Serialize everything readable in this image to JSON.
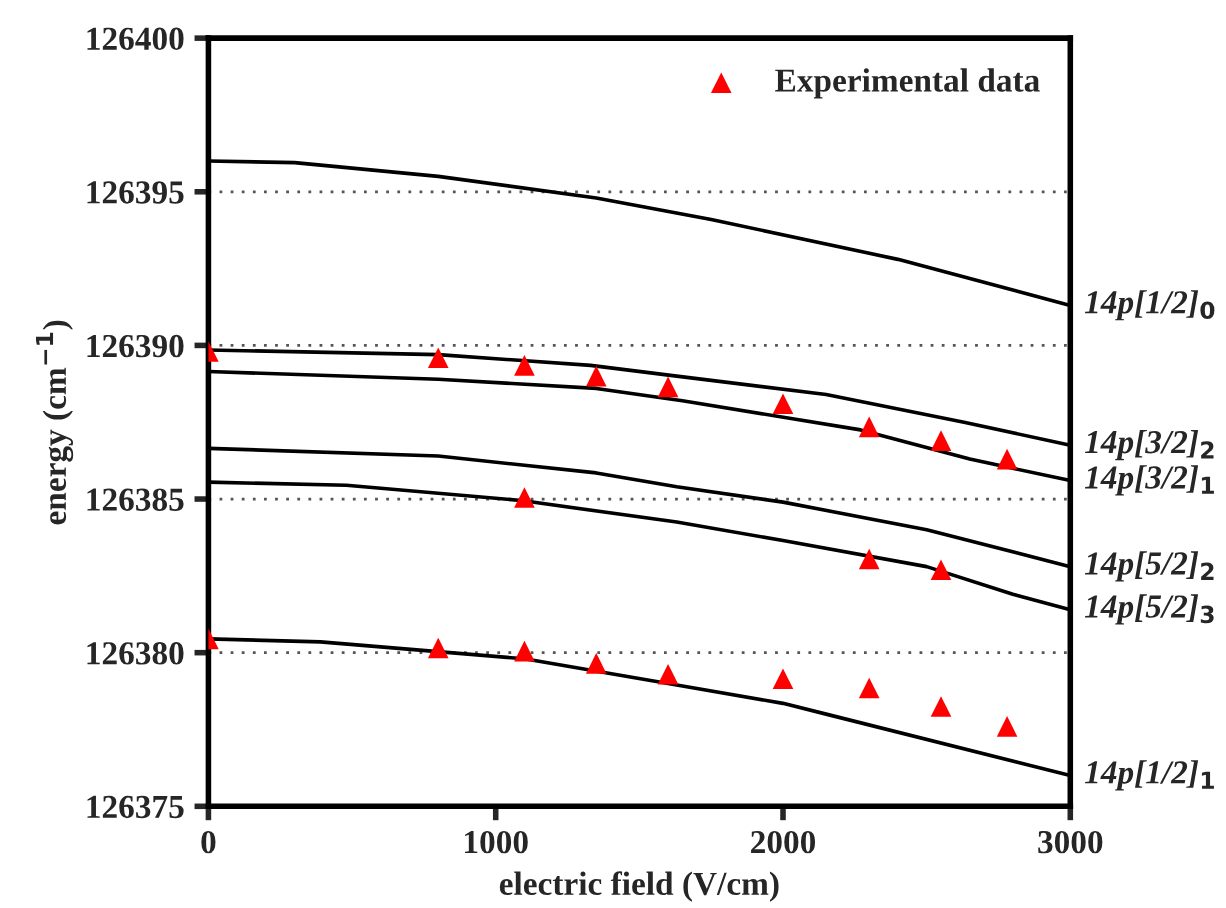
{
  "chart_data": {
    "type": "line",
    "xlabel": "electric field (V/cm)",
    "ylabel": "energy (cm$^{−1}$)",
    "xlim": [
      0,
      3000
    ],
    "xticks": [
      0,
      1000,
      2000,
      3000
    ],
    "ylim": [
      126375,
      126400
    ],
    "yticks": [
      126375,
      126380,
      126385,
      126390,
      126395,
      126400
    ],
    "grid": "y",
    "legend": "top right",
    "marker": "none",
    "line_style": "solid",
    "series": [
      {
        "name": "14p[1/2]$_{0}$",
        "color": "#000000",
        "x": [
          0,
          300,
          800,
          1350,
          1750,
          2400,
          3000
        ],
        "values": [
          126396.0,
          126395.95,
          126395.5,
          126394.8,
          126394.1,
          126392.8,
          126391.3
        ]
      },
      {
        "name": "14p[3/2]$_{2}$",
        "color": "#000000",
        "x": [
          0,
          800,
          1330,
          1630,
          2150,
          2630,
          3000
        ],
        "values": [
          126389.85,
          126389.7,
          126389.35,
          126389.0,
          126388.4,
          126387.5,
          126386.75
        ]
      },
      {
        "name": "14p[3/2]$_{1}$",
        "color": "#000000",
        "x": [
          0,
          800,
          1350,
          1650,
          2270,
          2650,
          3000
        ],
        "values": [
          126389.15,
          126388.9,
          126388.6,
          126388.2,
          126387.25,
          126386.3,
          126385.6
        ]
      },
      {
        "name": "14p[5/2]$_{2}$",
        "color": "#000000",
        "x": [
          0,
          800,
          1350,
          1630,
          2000,
          2500,
          3000
        ],
        "values": [
          126386.65,
          126386.4,
          126385.85,
          126385.4,
          126384.9,
          126384.0,
          126382.8
        ]
      },
      {
        "name": "14p[5/2]$_{3}$",
        "color": "#000000",
        "x": [
          0,
          480,
          1090,
          1630,
          2000,
          2500,
          2800,
          3000
        ],
        "values": [
          126385.55,
          126385.45,
          126384.95,
          126384.25,
          126383.65,
          126382.8,
          126381.9,
          126381.4
        ]
      },
      {
        "name": "14p[1/2]$_{1}$",
        "color": "#000000",
        "x": [
          0,
          390,
          1100,
          1630,
          2000,
          2150,
          3000
        ],
        "values": [
          126380.45,
          126380.35,
          126379.8,
          126378.95,
          126378.35,
          126378.0,
          126376.0
        ]
      },
      {
        "name": "Experimental data",
        "type": "scatter",
        "marker": "triangle",
        "color": "#ff0000",
        "x": [
          0,
          800,
          1100,
          1350,
          1600,
          2000,
          2300,
          2550,
          2780,
          1100,
          2300,
          2550,
          0,
          800,
          1100,
          1350,
          1600,
          2000,
          2300,
          2550,
          2780
        ],
        "values": [
          126389.8,
          126389.6,
          126389.35,
          126389.0,
          126388.65,
          126388.1,
          126387.35,
          126386.9,
          126386.3,
          126385.05,
          126383.05,
          126382.7,
          126380.45,
          126380.15,
          126380.05,
          126379.65,
          126379.3,
          126379.15,
          126378.85,
          126378.25,
          126377.6
        ]
      }
    ]
  }
}
